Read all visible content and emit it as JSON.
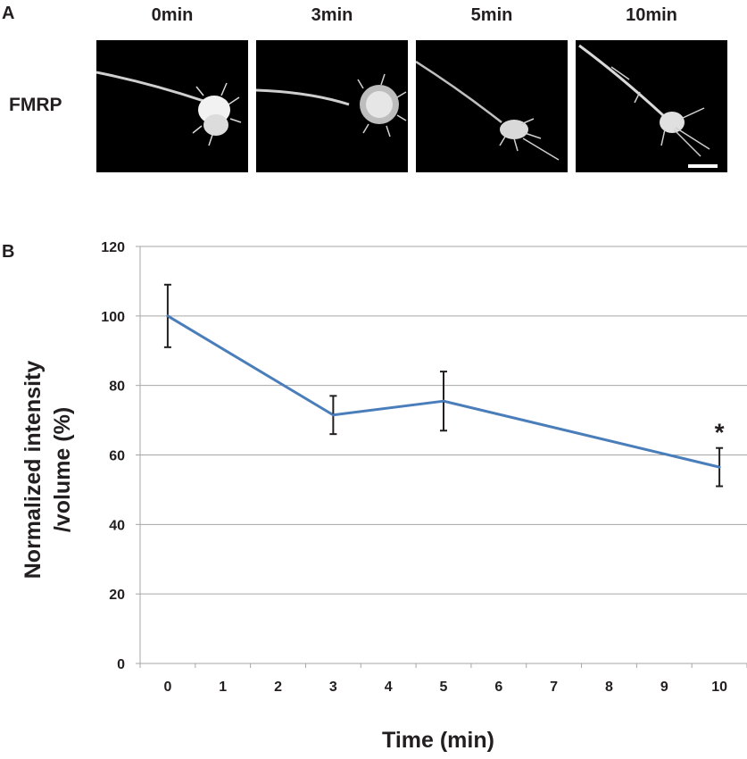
{
  "panel_a": {
    "letter": "A",
    "row_label": "FMRP",
    "time_labels": [
      "0min",
      "3min",
      "5min",
      "10min"
    ]
  },
  "panel_b": {
    "letter": "B"
  },
  "chart_data": {
    "type": "line",
    "x": [
      0,
      3,
      5,
      10
    ],
    "series": [
      {
        "values": [
          100,
          71.5,
          75.5,
          56.5
        ],
        "errors": [
          9,
          5.5,
          8.5,
          5.5
        ],
        "color": "#4a7ebb"
      }
    ],
    "xticks": [
      "0",
      "1",
      "2",
      "3",
      "4",
      "5",
      "6",
      "7",
      "8",
      "9",
      "10"
    ],
    "yticks": [
      "0",
      "20",
      "40",
      "60",
      "80",
      "100",
      "120"
    ],
    "xlim": [
      0,
      10
    ],
    "ylim": [
      0,
      120
    ],
    "xlabel": "Time (min)",
    "ylabel_line1": "Normalized intensity",
    "ylabel_line2": "/volume (%)",
    "annotation": "*",
    "grid": true
  }
}
